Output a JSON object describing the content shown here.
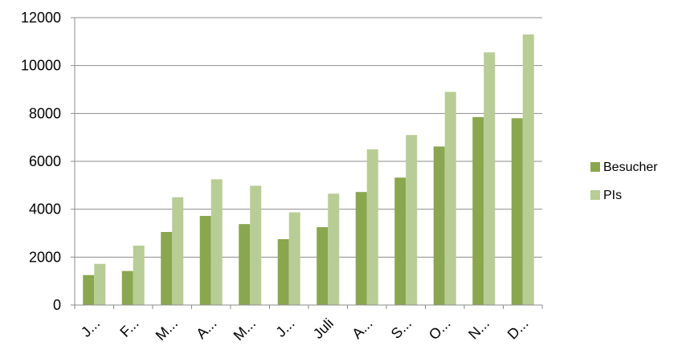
{
  "chart_data": {
    "type": "bar",
    "title": "",
    "xlabel": "",
    "ylabel": "",
    "categories": [
      "J...",
      "F...",
      "M...",
      "A...",
      "M...",
      "J...",
      "Juli",
      "A...",
      "S...",
      "O...",
      "N...",
      "D..."
    ],
    "series": [
      {
        "name": "Besucher",
        "color": "#8aa64f",
        "values": [
          1250,
          1420,
          3050,
          3720,
          3380,
          2750,
          3250,
          4720,
          5320,
          6620,
          7850,
          7800
        ]
      },
      {
        "name": "PIs",
        "color": "#b7cd95",
        "values": [
          1720,
          2480,
          4500,
          5250,
          4980,
          3870,
          4650,
          6500,
          7100,
          8900,
          10550,
          11300
        ]
      }
    ],
    "ylim": [
      0,
      12000
    ],
    "yticks": [
      "0",
      "2000",
      "4000",
      "6000",
      "8000",
      "10000",
      "12000"
    ],
    "grid": true,
    "legend_position": "right"
  }
}
